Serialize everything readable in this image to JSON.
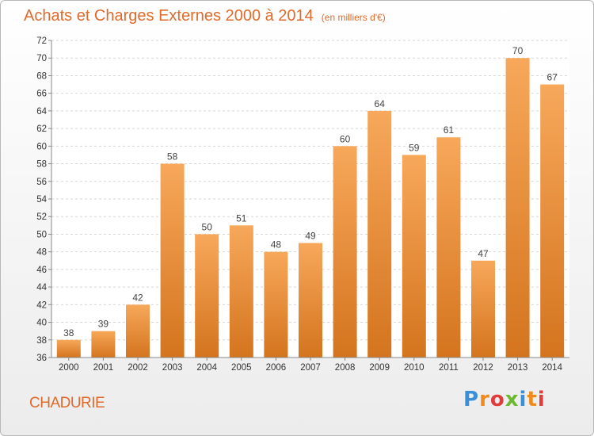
{
  "header": {
    "title": "Achats et Charges Externes 2000 à 2014",
    "subtitle": "(en milliers d'€)"
  },
  "footer": {
    "location": "CHADURIE",
    "logo_text": "Proxiti"
  },
  "colors": {
    "accent": "#e06a2a",
    "bar_top": "#f7a85a",
    "bar_bottom": "#d4741e",
    "grid": "#d6d6d6",
    "plot_bg": "#ffffff"
  },
  "chart_data": {
    "type": "bar",
    "title": "Achats et Charges Externes 2000 à 2014",
    "subtitle": "(en milliers d'€)",
    "categories": [
      "2000",
      "2001",
      "2002",
      "2003",
      "2004",
      "2005",
      "2006",
      "2007",
      "2008",
      "2009",
      "2010",
      "2011",
      "2012",
      "2013",
      "2014"
    ],
    "values": [
      38,
      39,
      42,
      58,
      50,
      51,
      48,
      49,
      60,
      64,
      59,
      61,
      47,
      70,
      67
    ],
    "ylim": [
      36,
      72
    ],
    "yticks": [
      36,
      38,
      40,
      42,
      44,
      46,
      48,
      50,
      52,
      54,
      56,
      58,
      60,
      62,
      64,
      66,
      68,
      70,
      72
    ],
    "grid": true,
    "xlabel": "",
    "ylabel": ""
  }
}
